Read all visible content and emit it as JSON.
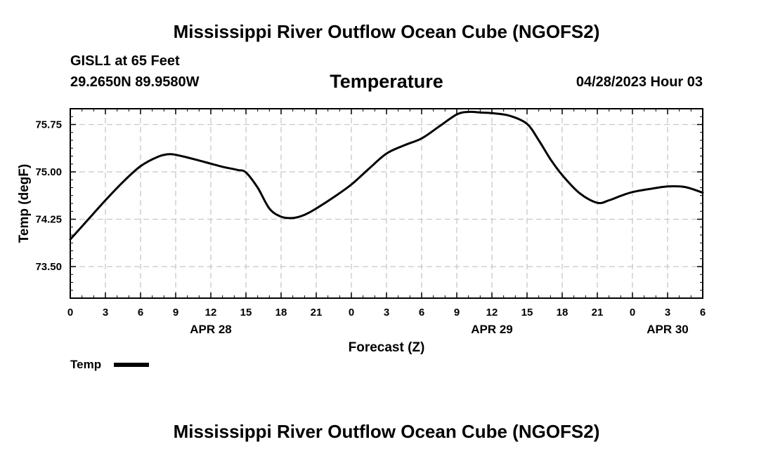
{
  "header": {
    "title": "Mississippi River Outflow Ocean Cube (NGOFS2)",
    "station": "GISL1 at 65 Feet",
    "coords": "29.2650N  89.9580W",
    "chart_title": "Temperature",
    "datetime": "04/28/2023 Hour 03"
  },
  "legend": {
    "label": "Temp"
  },
  "footer": {
    "title": "Mississippi River Outflow Ocean Cube (NGOFS2)"
  },
  "colors": {
    "line": "#000000",
    "grid": "#c8c8c8"
  },
  "chart_data": {
    "type": "line",
    "title": "Temperature",
    "xlabel": "Forecast (Z)",
    "ylabel": "Temp (degF)",
    "xlim": [
      0,
      54
    ],
    "ylim": [
      73.0,
      76.0
    ],
    "x_ticks": [
      0,
      3,
      6,
      9,
      12,
      15,
      18,
      21,
      24,
      27,
      30,
      33,
      36,
      39,
      42,
      45,
      48,
      51,
      54
    ],
    "x_tick_labels": [
      "0",
      "3",
      "6",
      "9",
      "12",
      "15",
      "18",
      "21",
      "0",
      "3",
      "6",
      "9",
      "12",
      "15",
      "18",
      "21",
      "0",
      "3",
      "6"
    ],
    "y_ticks": [
      73.5,
      74.25,
      75.0,
      75.75
    ],
    "y_tick_labels": [
      "73.50",
      "74.25",
      "75.00",
      "75.75"
    ],
    "day_labels": [
      {
        "x": 12,
        "label": "APR 28"
      },
      {
        "x": 36,
        "label": "APR 29"
      },
      {
        "x": 51,
        "label": "APR 30"
      }
    ],
    "grid": true,
    "legend_position": "bottom-left",
    "series": [
      {
        "name": "Temp",
        "x": [
          0,
          1.5,
          3,
          4.5,
          6,
          7.5,
          8.5,
          9.5,
          11,
          12,
          13,
          14.3,
          15,
          16,
          17,
          18,
          19,
          20,
          21,
          22.5,
          24,
          25.5,
          27,
          28.5,
          30,
          31.5,
          33,
          34,
          35,
          36,
          37.5,
          39,
          40,
          41,
          42,
          43.5,
          45,
          46,
          47,
          48,
          49.5,
          51,
          52.5,
          54
        ],
        "y": [
          73.93,
          74.24,
          74.55,
          74.84,
          75.09,
          75.24,
          75.28,
          75.25,
          75.18,
          75.13,
          75.08,
          75.03,
          74.99,
          74.75,
          74.42,
          74.29,
          74.27,
          74.32,
          74.42,
          74.6,
          74.8,
          75.05,
          75.29,
          75.42,
          75.53,
          75.72,
          75.91,
          75.95,
          75.94,
          75.93,
          75.89,
          75.76,
          75.5,
          75.2,
          74.95,
          74.66,
          74.51,
          74.55,
          74.62,
          74.68,
          74.73,
          74.77,
          74.76,
          74.67
        ]
      }
    ]
  }
}
